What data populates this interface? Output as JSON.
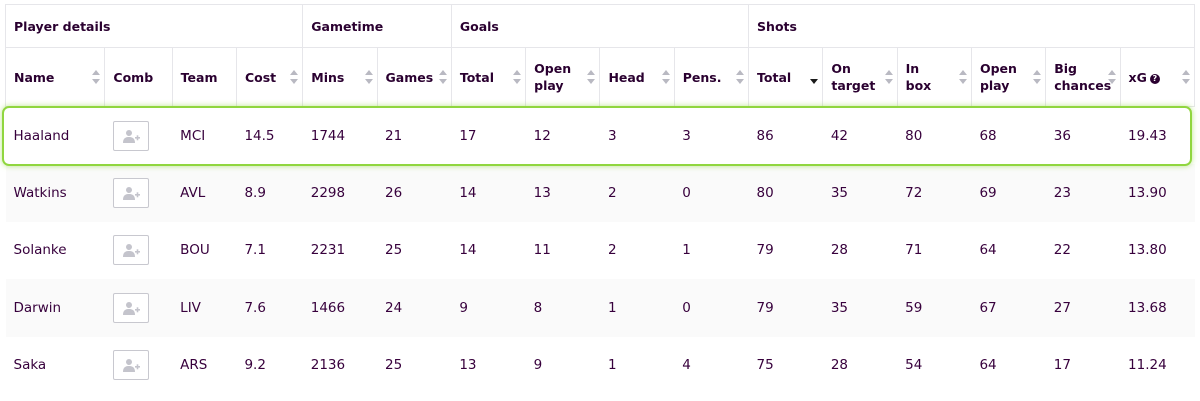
{
  "groups": {
    "player_details": "Player details",
    "gametime": "Gametime",
    "goals": "Goals",
    "shots": "Shots"
  },
  "columns": {
    "name": "Name",
    "comb": "Comb",
    "team": "Team",
    "cost": "Cost",
    "mins": "Mins",
    "games": "Games",
    "goals_total": "Total",
    "goals_open_play": "Open play",
    "head": "Head",
    "pens": "Pens.",
    "shots_total": "Total",
    "on_target": "On target",
    "in_box": "In box",
    "shots_open_play": "Open play",
    "big_chances": "Big chances",
    "xg": "xG",
    "xg_info": "?"
  },
  "sort": {
    "column": "shots_total",
    "direction": "descending"
  },
  "highlight_color": "#90d63f",
  "rows": [
    {
      "name": "Haaland",
      "team": "MCI",
      "cost": "14.5",
      "mins": "1744",
      "games": "21",
      "goals_total": "17",
      "goals_open_play": "12",
      "head": "3",
      "pens": "3",
      "shots_total": "86",
      "on_target": "42",
      "in_box": "80",
      "shots_open_play": "68",
      "big_chances": "36",
      "xg": "19.43"
    },
    {
      "name": "Watkins",
      "team": "AVL",
      "cost": "8.9",
      "mins": "2298",
      "games": "26",
      "goals_total": "14",
      "goals_open_play": "13",
      "head": "2",
      "pens": "0",
      "shots_total": "80",
      "on_target": "35",
      "in_box": "72",
      "shots_open_play": "69",
      "big_chances": "23",
      "xg": "13.90"
    },
    {
      "name": "Solanke",
      "team": "BOU",
      "cost": "7.1",
      "mins": "2231",
      "games": "25",
      "goals_total": "14",
      "goals_open_play": "11",
      "head": "2",
      "pens": "1",
      "shots_total": "79",
      "on_target": "28",
      "in_box": "71",
      "shots_open_play": "64",
      "big_chances": "22",
      "xg": "13.80"
    },
    {
      "name": "Darwin",
      "team": "LIV",
      "cost": "7.6",
      "mins": "1466",
      "games": "24",
      "goals_total": "9",
      "goals_open_play": "8",
      "head": "1",
      "pens": "0",
      "shots_total": "79",
      "on_target": "35",
      "in_box": "59",
      "shots_open_play": "67",
      "big_chances": "27",
      "xg": "13.68"
    },
    {
      "name": "Saka",
      "team": "ARS",
      "cost": "9.2",
      "mins": "2136",
      "games": "25",
      "goals_total": "13",
      "goals_open_play": "9",
      "head": "1",
      "pens": "4",
      "shots_total": "75",
      "on_target": "28",
      "in_box": "54",
      "shots_open_play": "64",
      "big_chances": "17",
      "xg": "11.24"
    }
  ]
}
